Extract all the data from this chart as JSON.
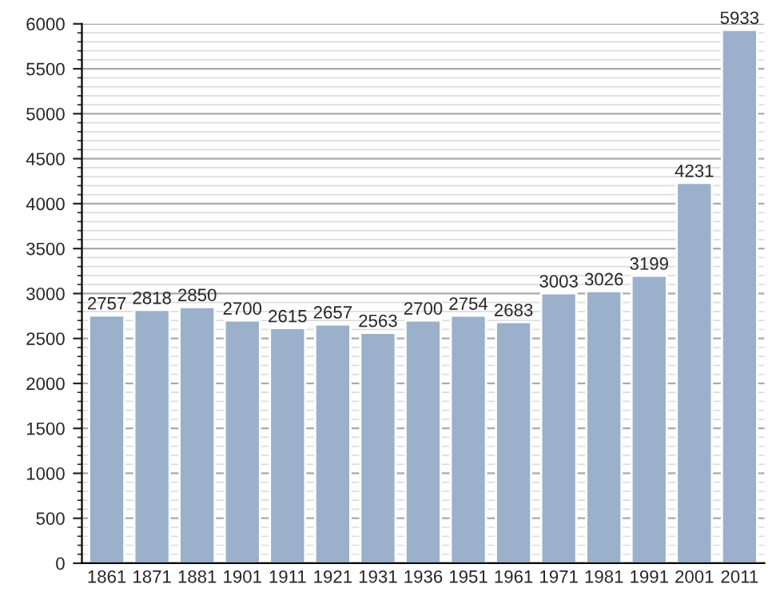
{
  "chart_data": {
    "type": "bar",
    "categories": [
      "1861",
      "1871",
      "1881",
      "1901",
      "1911",
      "1921",
      "1931",
      "1936",
      "1951",
      "1961",
      "1971",
      "1981",
      "1991",
      "2001",
      "2011"
    ],
    "values": [
      2757,
      2818,
      2850,
      2700,
      2615,
      2657,
      2563,
      2700,
      2754,
      2683,
      3003,
      3026,
      3199,
      4231,
      5933
    ],
    "color": "#9ab0cb",
    "ylim": [
      0,
      6000
    ],
    "yticks": [
      0,
      500,
      1000,
      1500,
      2000,
      2500,
      3000,
      3500,
      4000,
      4500,
      5000,
      5500,
      6000
    ],
    "grid": "y",
    "data_labels": true
  }
}
